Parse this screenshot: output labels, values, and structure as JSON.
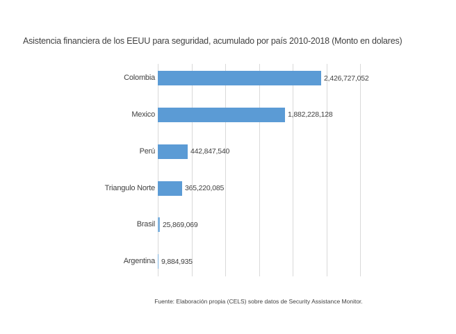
{
  "chart": {
    "title": "Asistencia financiera de los EEUU para seguridad, acumulado por país 2010-2018 (Monto en dolares)",
    "source": "Fuente: Elaboración propia (CELS) sobre datos de Security Assistance Monitor."
  },
  "chart_data": {
    "type": "bar",
    "orientation": "horizontal",
    "title": "Asistencia financiera de los EEUU para seguridad, acumulado por país 2010-2018 (Monto en dolares)",
    "categories": [
      "Colombia",
      "Mexico",
      "Perú",
      "Triangulo Norte",
      "Brasil",
      "Argentina"
    ],
    "values": [
      2426727052,
      1882228128,
      442847540,
      365220085,
      25869069,
      9884935
    ],
    "value_labels": [
      "2,426,727,052",
      "1,882,228,128",
      "442,847,540",
      "365,220,085",
      "25,869,069",
      "9,884,935"
    ],
    "xlabel": "",
    "ylabel": "",
    "xlim": [
      0,
      3000000000
    ],
    "gridline_interval": 500000000,
    "grid": true,
    "legend": false,
    "data_labels": true,
    "bar_color": "#5b9bd5",
    "gridline_color": "#d9d9d9",
    "text_color": "#404040",
    "annotations": [
      "Fuente: Elaboración propia (CELS) sobre datos de Security Assistance Monitor."
    ]
  }
}
